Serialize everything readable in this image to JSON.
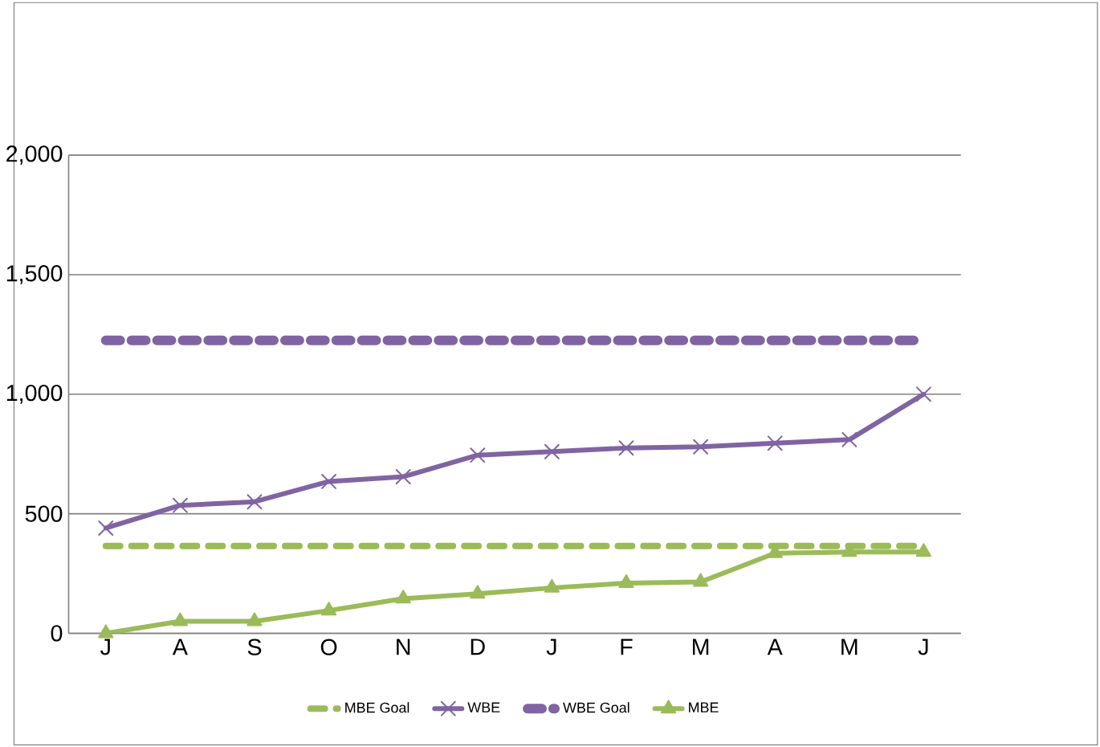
{
  "chart_data": {
    "type": "line",
    "categories": [
      "J",
      "A",
      "S",
      "O",
      "N",
      "D",
      "J",
      "F",
      "M",
      "A",
      "M",
      "J"
    ],
    "series": [
      {
        "name": "MBE Goal",
        "color": "#9bbb59",
        "line_style": "dashed",
        "marker": "none",
        "values": [
          365,
          365,
          365,
          365,
          365,
          365,
          365,
          365,
          365,
          365,
          365,
          365
        ]
      },
      {
        "name": "WBE",
        "color": "#8064a2",
        "line_style": "solid",
        "marker": "cross",
        "values": [
          440,
          535,
          550,
          635,
          655,
          745,
          760,
          775,
          780,
          795,
          810,
          1000
        ]
      },
      {
        "name": "WBE Goal",
        "color": "#8064a2",
        "line_style": "dashed",
        "marker": "none",
        "values": [
          1225,
          1225,
          1225,
          1225,
          1225,
          1225,
          1225,
          1225,
          1225,
          1225,
          1225,
          1225
        ]
      },
      {
        "name": "MBE",
        "color": "#9bbb59",
        "line_style": "solid",
        "marker": "triangle",
        "values": [
          0,
          50,
          50,
          95,
          145,
          165,
          190,
          210,
          215,
          335,
          340,
          340
        ]
      }
    ],
    "ylim": [
      0,
      2000
    ],
    "yticks": [
      {
        "value": 0,
        "label": "0"
      },
      {
        "value": 500,
        "label": "500"
      },
      {
        "value": 1000,
        "label": "1,000"
      },
      {
        "value": 1500,
        "label": "1,500"
      },
      {
        "value": 2000,
        "label": "2,000"
      }
    ],
    "grid": "y",
    "legend": "bottom"
  }
}
